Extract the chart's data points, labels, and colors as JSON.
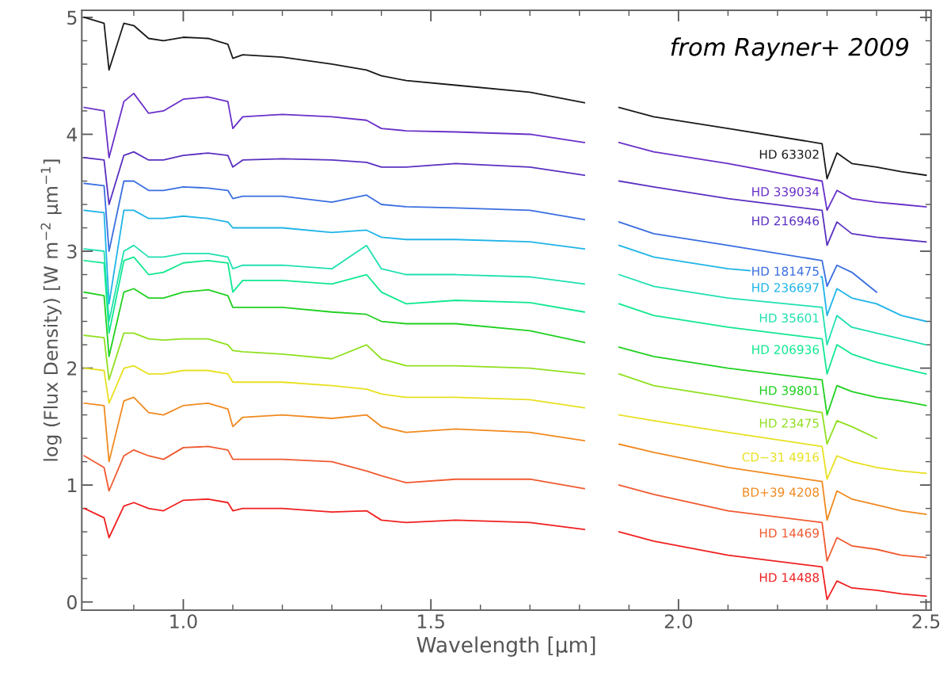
{
  "chart_data": {
    "type": "line",
    "xlabel": "Wavelength [µm]",
    "ylabel": "log (Flux Density) [W m$^{−2}$ µm$^{−1}$]",
    "annotations": [
      "from Rayner+ 2009"
    ],
    "x": [
      0.8,
      0.84,
      0.85,
      0.88,
      0.9,
      0.93,
      0.96,
      1.0,
      1.05,
      1.09,
      1.1,
      1.12,
      1.2,
      1.3,
      1.37,
      1.4,
      1.45,
      1.55,
      1.7,
      1.81,
      1.84,
      1.88,
      1.95,
      2.1,
      2.29,
      2.3,
      2.32,
      2.35,
      2.4,
      2.45,
      2.5
    ],
    "xlim": [
      0.795,
      2.51
    ],
    "ylim": [
      -0.07,
      5.06
    ],
    "xticks": [
      {
        "value": 0.9,
        "label": null
      },
      {
        "value": 1.0,
        "label": "1.0"
      },
      {
        "value": 1.1,
        "label": null
      },
      {
        "value": 1.2,
        "label": null
      },
      {
        "value": 1.3,
        "label": null
      },
      {
        "value": 1.4,
        "label": null
      },
      {
        "value": 1.5,
        "label": "1.5"
      },
      {
        "value": 1.6,
        "label": null
      },
      {
        "value": 1.7,
        "label": null
      },
      {
        "value": 1.8,
        "label": null
      },
      {
        "value": 1.9,
        "label": null
      },
      {
        "value": 2.0,
        "label": "2.0"
      },
      {
        "value": 2.1,
        "label": null
      },
      {
        "value": 2.2,
        "label": null
      },
      {
        "value": 2.3,
        "label": null
      },
      {
        "value": 2.4,
        "label": null
      },
      {
        "value": 2.5,
        "label": "2.5"
      }
    ],
    "yticks": [
      0,
      1,
      2,
      3,
      4,
      5,
      {
        "value": 0.2,
        "label": null
      },
      {
        "value": 0.4,
        "label": null
      },
      {
        "value": 0.6,
        "label": null
      },
      {
        "value": 0.8,
        "label": null
      },
      {
        "value": 1.2,
        "label": null
      },
      {
        "value": 1.4,
        "label": null
      },
      {
        "value": 1.6,
        "label": null
      },
      {
        "value": 1.8,
        "label": null
      },
      {
        "value": 2.2,
        "label": null
      },
      {
        "value": 2.4,
        "label": null
      },
      {
        "value": 2.6,
        "label": null
      },
      {
        "value": 2.8,
        "label": null
      },
      {
        "value": 3.2,
        "label": null
      },
      {
        "value": 3.4,
        "label": null
      },
      {
        "value": 3.6,
        "label": null
      },
      {
        "value": 3.8,
        "label": null
      },
      {
        "value": 4.2,
        "label": null
      },
      {
        "value": 4.4,
        "label": null
      },
      {
        "value": 4.6,
        "label": null
      },
      {
        "value": 4.8,
        "label": null
      }
    ],
    "grid": false,
    "legend": false,
    "marker": "none",
    "line_style": "solid",
    "series": [
      {
        "name": "HD 63302",
        "color": "#1a1a1a",
        "values": [
          5.0,
          4.95,
          4.55,
          4.95,
          4.93,
          4.82,
          4.8,
          4.83,
          4.82,
          4.77,
          4.65,
          4.68,
          4.66,
          4.6,
          4.55,
          4.5,
          4.46,
          4.42,
          4.36,
          4.27,
          null,
          4.23,
          4.15,
          4.05,
          3.92,
          3.62,
          3.84,
          3.75,
          3.72,
          3.68,
          3.65
        ]
      },
      {
        "name": "HD 339034",
        "color": "#6a30c8",
        "values": [
          4.23,
          4.2,
          3.8,
          4.28,
          4.35,
          4.18,
          4.2,
          4.3,
          4.32,
          4.28,
          4.05,
          4.15,
          4.17,
          4.15,
          4.12,
          4.05,
          4.03,
          4.02,
          4.0,
          3.93,
          null,
          3.93,
          3.85,
          3.75,
          3.6,
          3.35,
          3.52,
          3.45,
          3.42,
          3.4,
          3.38
        ]
      },
      {
        "name": "HD 216946",
        "color": "#5a30c0",
        "values": [
          3.8,
          3.78,
          3.4,
          3.82,
          3.85,
          3.78,
          3.78,
          3.82,
          3.84,
          3.82,
          3.72,
          3.78,
          3.79,
          3.78,
          3.76,
          3.72,
          3.72,
          3.75,
          3.72,
          3.65,
          null,
          3.6,
          3.55,
          3.45,
          3.35,
          3.05,
          3.25,
          3.15,
          3.12,
          3.1,
          3.08
        ]
      },
      {
        "name": "HD 181475",
        "color": "#3a6ee0",
        "values": [
          3.58,
          3.56,
          3.0,
          3.6,
          3.6,
          3.52,
          3.52,
          3.55,
          3.54,
          3.52,
          3.45,
          3.47,
          3.47,
          3.42,
          3.48,
          3.4,
          3.38,
          3.37,
          3.35,
          3.27,
          null,
          3.25,
          3.15,
          3.05,
          2.92,
          2.7,
          2.88,
          2.82,
          2.65,
          null,
          null
        ]
      },
      {
        "name": "HD 236697",
        "color": "#20b4e8",
        "values": [
          3.35,
          3.33,
          2.55,
          3.35,
          3.35,
          3.28,
          3.28,
          3.3,
          3.28,
          3.25,
          3.2,
          3.2,
          3.2,
          3.16,
          3.18,
          3.12,
          3.1,
          3.1,
          3.08,
          3.02,
          null,
          3.05,
          2.95,
          2.85,
          2.78,
          2.45,
          2.68,
          2.6,
          2.55,
          2.45,
          2.4
        ]
      },
      {
        "name": "HD 35601",
        "color": "#20e0b0",
        "values": [
          3.02,
          3.0,
          2.4,
          3.0,
          3.05,
          2.95,
          2.95,
          2.98,
          2.98,
          2.95,
          2.85,
          2.88,
          2.88,
          2.85,
          3.05,
          2.85,
          2.8,
          2.8,
          2.78,
          2.72,
          null,
          2.8,
          2.7,
          2.6,
          2.52,
          2.2,
          2.45,
          2.35,
          2.3,
          2.25,
          2.2
        ]
      },
      {
        "name": "HD 206936",
        "color": "#10e890",
        "values": [
          2.92,
          2.9,
          2.3,
          2.92,
          2.95,
          2.8,
          2.82,
          2.9,
          2.92,
          2.9,
          2.65,
          2.75,
          2.75,
          2.72,
          2.8,
          2.65,
          2.55,
          2.58,
          2.56,
          2.48,
          null,
          2.55,
          2.45,
          2.35,
          2.25,
          1.95,
          2.2,
          2.12,
          2.05,
          2.0,
          1.95
        ]
      },
      {
        "name": "HD 39801",
        "color": "#20d020",
        "values": [
          2.65,
          2.62,
          2.1,
          2.65,
          2.68,
          2.6,
          2.6,
          2.65,
          2.67,
          2.62,
          2.52,
          2.52,
          2.52,
          2.48,
          2.46,
          2.4,
          2.38,
          2.38,
          2.32,
          2.22,
          null,
          2.18,
          2.1,
          2.0,
          1.9,
          1.6,
          1.85,
          1.8,
          1.75,
          1.72,
          1.68
        ]
      },
      {
        "name": "HD 23475",
        "color": "#90e020",
        "values": [
          2.28,
          2.26,
          1.9,
          2.3,
          2.3,
          2.25,
          2.24,
          2.25,
          2.25,
          2.2,
          2.15,
          2.14,
          2.12,
          2.08,
          2.2,
          2.08,
          2.02,
          2.02,
          2.0,
          1.95,
          null,
          1.95,
          1.85,
          1.75,
          1.62,
          1.35,
          1.55,
          1.5,
          1.4,
          null,
          null
        ]
      },
      {
        "name": "CD−31 4916",
        "color": "#e8e020",
        "values": [
          2.0,
          1.98,
          1.7,
          2.0,
          2.02,
          1.95,
          1.95,
          1.98,
          1.98,
          1.95,
          1.88,
          1.88,
          1.88,
          1.85,
          1.82,
          1.78,
          1.75,
          1.75,
          1.73,
          1.66,
          null,
          1.6,
          1.55,
          1.45,
          1.33,
          1.05,
          1.25,
          1.2,
          1.15,
          1.12,
          1.1
        ]
      },
      {
        "name": "BD+39 4208",
        "color": "#f08a20",
        "values": [
          1.7,
          1.68,
          1.2,
          1.72,
          1.75,
          1.62,
          1.6,
          1.68,
          1.7,
          1.65,
          1.5,
          1.58,
          1.6,
          1.57,
          1.6,
          1.5,
          1.45,
          1.48,
          1.45,
          1.38,
          null,
          1.35,
          1.28,
          1.15,
          1.03,
          0.7,
          0.95,
          0.88,
          0.83,
          0.78,
          0.75
        ]
      },
      {
        "name": "HD 14469",
        "color": "#f05a30",
        "values": [
          1.25,
          1.15,
          0.95,
          1.25,
          1.3,
          1.25,
          1.22,
          1.32,
          1.33,
          1.3,
          1.22,
          1.22,
          1.22,
          1.2,
          1.12,
          1.08,
          1.02,
          1.05,
          1.05,
          0.97,
          null,
          1.0,
          0.92,
          0.78,
          0.68,
          0.35,
          0.55,
          0.48,
          0.45,
          0.4,
          0.38
        ]
      },
      {
        "name": "HD 14488",
        "color": "#f02020",
        "values": [
          0.8,
          0.72,
          0.55,
          0.82,
          0.85,
          0.8,
          0.78,
          0.87,
          0.88,
          0.85,
          0.78,
          0.8,
          0.8,
          0.77,
          0.78,
          0.7,
          0.68,
          0.7,
          0.68,
          0.62,
          null,
          0.6,
          0.52,
          0.4,
          0.3,
          0.02,
          0.18,
          0.12,
          0.1,
          0.07,
          0.05
        ]
      }
    ]
  }
}
